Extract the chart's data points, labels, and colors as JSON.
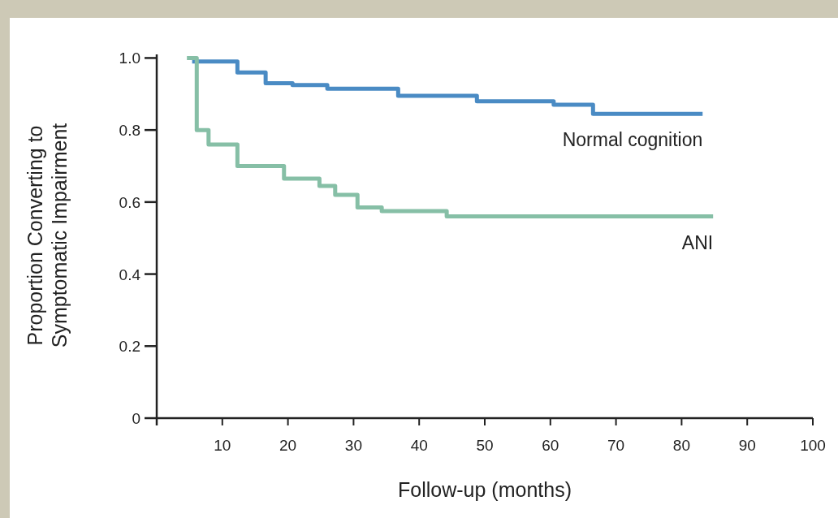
{
  "chart_data": {
    "type": "step",
    "xlabel": "Follow-up (months)",
    "ylabel": "Proportion Converting to Symptomatic Impairment",
    "xlim": [
      0,
      100
    ],
    "ylim": [
      0,
      1.01
    ],
    "xticks": [
      10,
      20,
      30,
      40,
      50,
      60,
      70,
      80,
      90,
      100
    ],
    "yticks": [
      {
        "value": 0,
        "label": "0"
      },
      0.2,
      0.4,
      0.6,
      0.8,
      {
        "value": 1,
        "label": "1.0"
      }
    ],
    "grid": false,
    "marker": "none",
    "line_style": "solid",
    "series": [
      {
        "name": "Normal cognition",
        "color": "#4a8bc4",
        "x": [
          5.4,
          12.3,
          16.6,
          20.7,
          26,
          36.8,
          48.8,
          60.5,
          66.5,
          83.2
        ],
        "values": [
          0.99,
          0.96,
          0.93,
          0.925,
          0.915,
          0.895,
          0.88,
          0.87,
          0.845,
          0.845
        ]
      },
      {
        "name": "ANI",
        "color": "#86bfa6",
        "x": [
          4.6,
          6.1,
          7.9,
          12.3,
          19.4,
          24.8,
          27.2,
          30.6,
          34.3,
          44.2,
          84.8
        ],
        "values": [
          1.0,
          0.8,
          0.76,
          0.7,
          0.665,
          0.645,
          0.62,
          0.585,
          0.575,
          0.56,
          0.56
        ]
      }
    ]
  }
}
